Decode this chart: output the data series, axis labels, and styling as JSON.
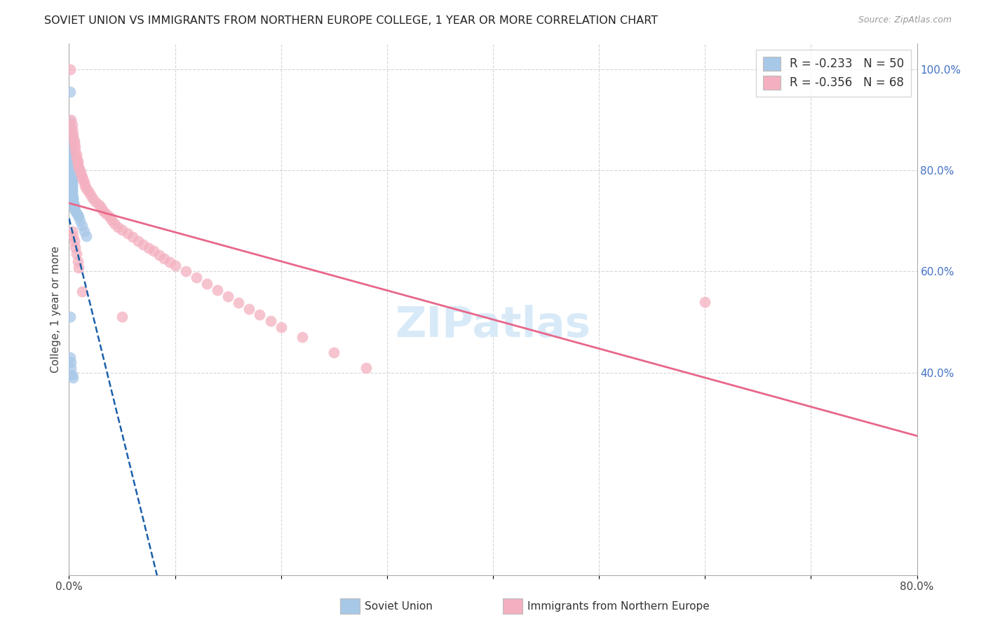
{
  "title": "SOVIET UNION VS IMMIGRANTS FROM NORTHERN EUROPE COLLEGE, 1 YEAR OR MORE CORRELATION CHART",
  "source": "Source: ZipAtlas.com",
  "ylabel": "College, 1 year or more",
  "xlim": [
    0.0,
    0.8
  ],
  "ylim": [
    0.0,
    1.05
  ],
  "x_tick_positions": [
    0.0,
    0.1,
    0.2,
    0.3,
    0.4,
    0.5,
    0.6,
    0.7,
    0.8
  ],
  "x_tick_labels": [
    "0.0%",
    "",
    "",
    "",
    "",
    "",
    "",
    "",
    "80.0%"
  ],
  "y_ticks_right": [
    0.4,
    0.6,
    0.8,
    1.0
  ],
  "y_tick_labels_right": [
    "40.0%",
    "60.0%",
    "80.0%",
    "100.0%"
  ],
  "soviet_union_x": [
    0.001,
    0.001,
    0.001,
    0.001,
    0.001,
    0.001,
    0.001,
    0.001,
    0.001,
    0.001,
    0.001,
    0.002,
    0.002,
    0.002,
    0.002,
    0.002,
    0.002,
    0.002,
    0.002,
    0.002,
    0.003,
    0.003,
    0.003,
    0.003,
    0.003,
    0.003,
    0.003,
    0.003,
    0.003,
    0.004,
    0.004,
    0.004,
    0.004,
    0.005,
    0.005,
    0.005,
    0.006,
    0.007,
    0.008,
    0.009,
    0.01,
    0.012,
    0.014,
    0.016,
    0.001,
    0.001,
    0.002,
    0.002,
    0.003,
    0.004
  ],
  "soviet_union_y": [
    0.955,
    0.895,
    0.88,
    0.87,
    0.862,
    0.855,
    0.848,
    0.842,
    0.836,
    0.83,
    0.825,
    0.82,
    0.816,
    0.812,
    0.808,
    0.804,
    0.8,
    0.796,
    0.792,
    0.788,
    0.784,
    0.78,
    0.776,
    0.772,
    0.768,
    0.764,
    0.76,
    0.756,
    0.752,
    0.748,
    0.744,
    0.74,
    0.736,
    0.732,
    0.728,
    0.724,
    0.72,
    0.716,
    0.712,
    0.708,
    0.7,
    0.69,
    0.68,
    0.67,
    0.51,
    0.43,
    0.42,
    0.41,
    0.395,
    0.39
  ],
  "northern_europe_x": [
    0.001,
    0.002,
    0.003,
    0.003,
    0.004,
    0.004,
    0.005,
    0.005,
    0.006,
    0.006,
    0.007,
    0.007,
    0.008,
    0.008,
    0.009,
    0.01,
    0.011,
    0.012,
    0.013,
    0.014,
    0.015,
    0.016,
    0.018,
    0.02,
    0.022,
    0.025,
    0.028,
    0.03,
    0.032,
    0.035,
    0.038,
    0.04,
    0.043,
    0.046,
    0.05,
    0.055,
    0.06,
    0.065,
    0.07,
    0.075,
    0.08,
    0.085,
    0.09,
    0.095,
    0.1,
    0.11,
    0.12,
    0.13,
    0.14,
    0.15,
    0.16,
    0.17,
    0.18,
    0.19,
    0.2,
    0.22,
    0.25,
    0.28,
    0.003,
    0.004,
    0.005,
    0.006,
    0.007,
    0.008,
    0.009,
    0.012,
    0.05,
    0.6
  ],
  "northern_europe_y": [
    1.0,
    0.9,
    0.89,
    0.88,
    0.872,
    0.865,
    0.858,
    0.852,
    0.845,
    0.838,
    0.831,
    0.824,
    0.818,
    0.812,
    0.806,
    0.8,
    0.794,
    0.788,
    0.782,
    0.776,
    0.77,
    0.764,
    0.758,
    0.752,
    0.745,
    0.738,
    0.732,
    0.726,
    0.72,
    0.714,
    0.708,
    0.702,
    0.695,
    0.688,
    0.682,
    0.675,
    0.668,
    0.66,
    0.653,
    0.646,
    0.64,
    0.633,
    0.626,
    0.619,
    0.612,
    0.6,
    0.588,
    0.576,
    0.563,
    0.55,
    0.538,
    0.526,
    0.514,
    0.502,
    0.49,
    0.47,
    0.44,
    0.41,
    0.68,
    0.67,
    0.66,
    0.648,
    0.635,
    0.62,
    0.608,
    0.56,
    0.51,
    0.54
  ],
  "soviet_color": "#a8c8e8",
  "northern_color": "#f4b0c0",
  "soviet_line_color": "#1a5fa8",
  "northern_line_color": "#e8668a",
  "background_color": "#ffffff",
  "grid_color": "#cccccc",
  "watermark_color": "#d8eaf8",
  "title_fontsize": 11.5,
  "axis_fontsize": 11,
  "legend_fontsize": 12,
  "note_line_intercept_su": 0.705,
  "note_line_slope_su": -8.5,
  "note_line_intercept_ne": 0.735,
  "note_line_slope_ne": -0.575
}
